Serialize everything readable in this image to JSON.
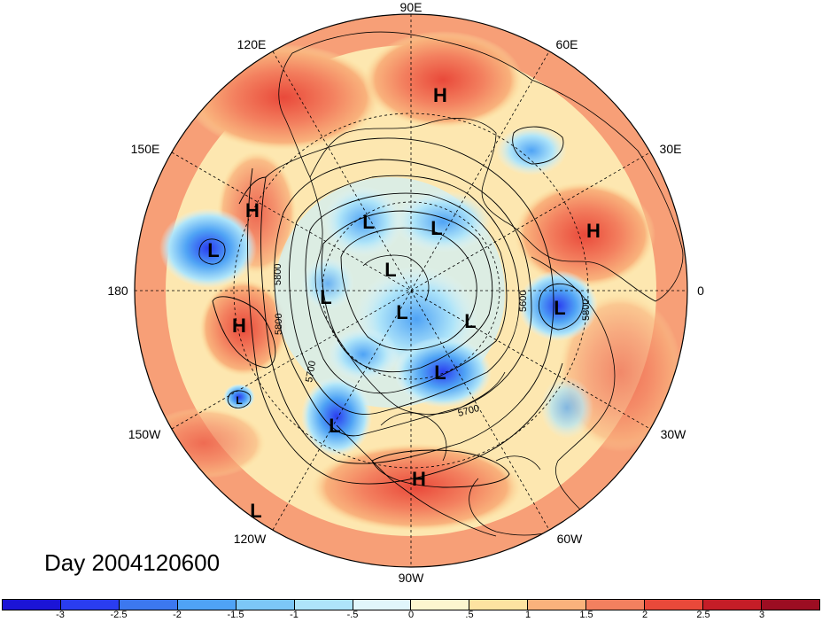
{
  "title": "Day 2004120600",
  "longitude_labels": [
    "90E",
    "60E",
    "30E",
    "0",
    "30W",
    "60W",
    "90W",
    "120W",
    "150W",
    "180",
    "150E",
    "120E"
  ],
  "contour_labels": [
    "5800",
    "5800",
    "5700",
    "5700",
    "5800",
    "5600",
    "5700",
    "5800"
  ],
  "pressure_centers": [
    {
      "type": "H",
      "name": "high-siberia"
    },
    {
      "type": "H",
      "name": "high-north-pacific-west"
    },
    {
      "type": "H",
      "name": "high-europe"
    },
    {
      "type": "H",
      "name": "high-central-pacific"
    },
    {
      "type": "H",
      "name": "high-caribbean"
    },
    {
      "type": "L",
      "name": "low-west-pacific"
    },
    {
      "type": "L",
      "name": "low-east-siberia"
    },
    {
      "type": "L",
      "name": "low-arctic-1"
    },
    {
      "type": "L",
      "name": "low-arctic-2"
    },
    {
      "type": "L",
      "name": "low-alaska"
    },
    {
      "type": "L",
      "name": "low-canada-1"
    },
    {
      "type": "L",
      "name": "low-canada-2"
    },
    {
      "type": "L",
      "name": "low-labrador"
    },
    {
      "type": "L",
      "name": "low-hudson"
    },
    {
      "type": "L",
      "name": "low-west-us"
    },
    {
      "type": "L",
      "name": "low-mediterranean"
    },
    {
      "type": "L",
      "name": "low-hawaii"
    },
    {
      "type": "L",
      "name": "low-tropical-pacific"
    }
  ],
  "colorbar": {
    "ticks": [
      "-3",
      "-2.5",
      "-2",
      "-1.5",
      "-1",
      "-.5",
      "0",
      ".5",
      "1",
      "1.5",
      "2",
      "2.5",
      "3"
    ],
    "colors": [
      "#1b14d6",
      "#2a3df0",
      "#3c78ef",
      "#4fa3f5",
      "#7cc7f7",
      "#aee4f9",
      "#e1f6fb",
      "#fdf6cf",
      "#fde3a1",
      "#f9b27c",
      "#f3805f",
      "#e9493a",
      "#c51d27",
      "#9c0d22"
    ]
  },
  "colors": {
    "ocean_background": "#fde7b0",
    "continent_outline": "#000000",
    "contour": "#000000"
  }
}
